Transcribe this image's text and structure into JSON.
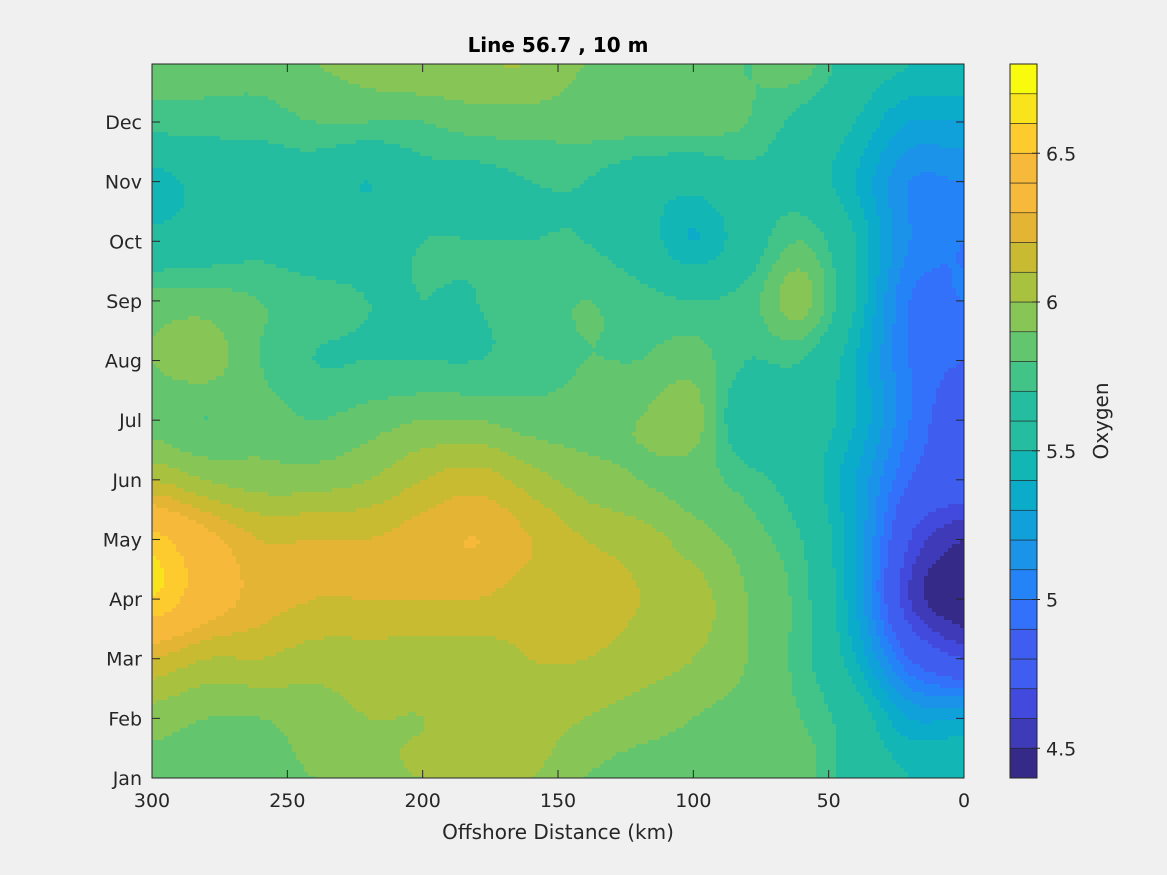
{
  "chart_data": {
    "type": "heatmap",
    "subtype": "filled-contour",
    "title": "Line 56.7 , 10 m",
    "xlabel": "Offshore Distance (km)",
    "ylabel": "",
    "xlim": [
      300,
      0
    ],
    "x_reversed": true,
    "xticks": [
      300,
      250,
      200,
      150,
      100,
      50,
      0
    ],
    "ytick_labels": [
      "Jan",
      "Feb",
      "Mar",
      "Apr",
      "May",
      "Jun",
      "Jul",
      "Aug",
      "Sep",
      "Oct",
      "Nov",
      "Dec"
    ],
    "colorbar": {
      "label": "Oxygen",
      "range": [
        4.4,
        6.8
      ],
      "levels_step": 0.1,
      "ticks": [
        4.5,
        5,
        5.5,
        6,
        6.5
      ],
      "tick_labels": [
        "4.5",
        "5",
        "5.5",
        "6",
        "6.5"
      ],
      "colormap": "parula"
    },
    "grid": false,
    "sample_x_km": [
      300,
      280,
      260,
      240,
      220,
      200,
      180,
      160,
      140,
      120,
      100,
      80,
      60,
      40,
      20,
      0
    ],
    "sample_months": [
      "Jan",
      "Feb",
      "Mar",
      "Apr",
      "May",
      "Jun",
      "Jul",
      "Aug",
      "Sep",
      "Oct",
      "Nov",
      "Dec"
    ],
    "oxygen_grid": [
      [
        5.85,
        5.85,
        5.85,
        5.9,
        5.95,
        6.0,
        6.0,
        6.0,
        5.9,
        5.85,
        5.85,
        5.8,
        5.85,
        5.6,
        5.5,
        5.5
      ],
      [
        5.95,
        5.9,
        5.9,
        5.95,
        6.0,
        6.0,
        6.05,
        6.05,
        6.0,
        5.95,
        5.9,
        5.85,
        5.8,
        5.6,
        5.3,
        5.3
      ],
      [
        6.2,
        6.1,
        6.1,
        6.05,
        6.05,
        6.05,
        6.05,
        6.1,
        6.1,
        6.05,
        6.0,
        5.9,
        5.75,
        5.4,
        4.9,
        4.7
      ],
      [
        6.6,
        6.4,
        6.25,
        6.2,
        6.2,
        6.2,
        6.2,
        6.15,
        6.15,
        6.1,
        6.05,
        5.9,
        5.75,
        5.3,
        4.6,
        4.4
      ],
      [
        6.55,
        6.35,
        6.2,
        6.2,
        6.2,
        6.25,
        6.3,
        6.2,
        6.1,
        6.05,
        5.95,
        5.85,
        5.7,
        5.3,
        4.7,
        4.5
      ],
      [
        6.1,
        6.0,
        5.95,
        5.95,
        6.0,
        6.1,
        6.15,
        6.05,
        5.95,
        5.9,
        5.85,
        5.75,
        5.6,
        5.3,
        4.9,
        4.8
      ],
      [
        5.85,
        5.8,
        5.85,
        5.8,
        5.85,
        5.9,
        5.9,
        5.85,
        5.85,
        5.9,
        5.95,
        5.55,
        5.6,
        5.4,
        5.0,
        4.8
      ],
      [
        5.9,
        5.95,
        5.8,
        5.7,
        5.7,
        5.7,
        5.7,
        5.75,
        5.8,
        5.8,
        5.85,
        5.7,
        5.7,
        5.4,
        5.0,
        4.9
      ],
      [
        5.85,
        5.85,
        5.8,
        5.75,
        5.7,
        5.7,
        5.7,
        5.75,
        5.8,
        5.75,
        5.7,
        5.75,
        5.95,
        5.5,
        5.0,
        5.0
      ],
      [
        5.55,
        5.6,
        5.65,
        5.6,
        5.65,
        5.7,
        5.7,
        5.7,
        5.7,
        5.6,
        5.4,
        5.6,
        5.8,
        5.5,
        5.1,
        5.0
      ],
      [
        5.45,
        5.55,
        5.6,
        5.6,
        5.5,
        5.65,
        5.65,
        5.7,
        5.7,
        5.6,
        5.55,
        5.65,
        5.6,
        5.4,
        5.1,
        5.1
      ],
      [
        5.75,
        5.75,
        5.75,
        5.8,
        5.8,
        5.8,
        5.85,
        5.85,
        5.85,
        5.85,
        5.85,
        5.8,
        5.65,
        5.5,
        5.3,
        5.3
      ]
    ]
  }
}
